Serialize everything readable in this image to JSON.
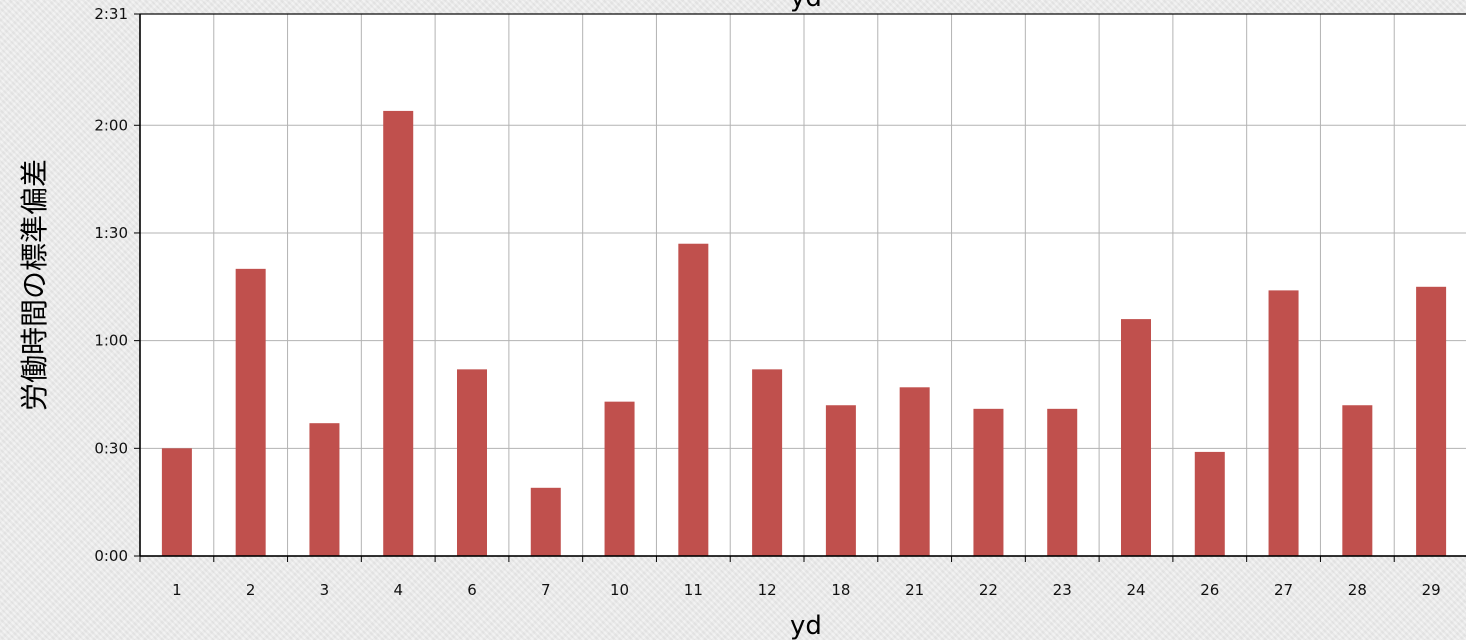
{
  "chart_data": {
    "type": "bar",
    "title": "yd",
    "xlabel": "yd",
    "ylabel": "労働時間の標準偏差",
    "categories": [
      "1",
      "2",
      "3",
      "4",
      "6",
      "7",
      "10",
      "11",
      "12",
      "18",
      "21",
      "22",
      "23",
      "24",
      "26",
      "27",
      "28",
      "29"
    ],
    "values": [
      30,
      80,
      37,
      124,
      52,
      19,
      43,
      87,
      52,
      42,
      47,
      41,
      41,
      66,
      29,
      74,
      42,
      75
    ],
    "value_unit": "minutes",
    "y_ticks": [
      "0:00",
      "0:30",
      "1:00",
      "1:30",
      "2:00",
      "2:31"
    ],
    "y_tick_values": [
      0,
      30,
      60,
      90,
      120,
      151
    ],
    "ylim": [
      0,
      151
    ],
    "grid": true,
    "bar_color": "#c0504d"
  }
}
